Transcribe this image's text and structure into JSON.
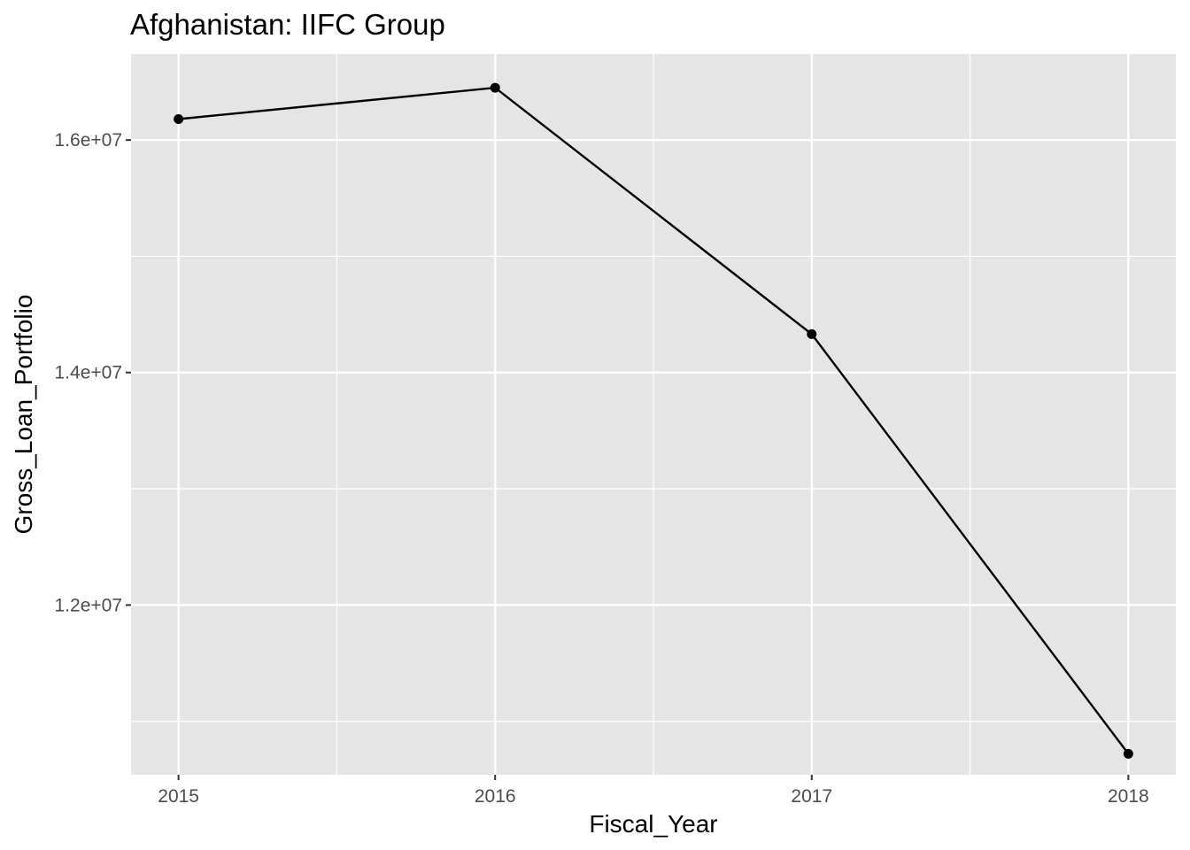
{
  "chart_data": {
    "type": "line",
    "title": "Afghanistan:  IIFC Group",
    "xlabel": "Fiscal_Year",
    "ylabel": "Gross_Loan_Portfolio",
    "x": [
      2015,
      2016,
      2017,
      2018
    ],
    "series": [
      {
        "values": [
          16180000,
          16450000,
          14330000,
          10720000
        ]
      }
    ],
    "x_ticks": [
      "2015",
      "2016",
      "2017",
      "2018"
    ],
    "y_ticks": [
      {
        "value": 12000000,
        "label": "1.2e+07"
      },
      {
        "value": 14000000,
        "label": "1.4e+07"
      },
      {
        "value": 16000000,
        "label": "1.6e+07"
      }
    ],
    "xlim": [
      2014.85,
      2018.15
    ],
    "ylim": [
      10540000,
      16740000
    ],
    "grid": true,
    "colors": {
      "panel": "#e5e5e5",
      "grid": "#ffffff",
      "line": "#000000",
      "tick_text": "#4d4d4d"
    }
  }
}
